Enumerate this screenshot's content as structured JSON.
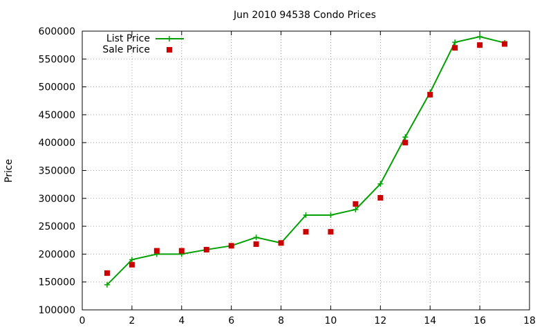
{
  "chart_data": {
    "type": "line",
    "title": "Jun 2010 94538 Condo Prices",
    "xlabel": "",
    "ylabel": "Price",
    "xlim": [
      0,
      18
    ],
    "ylim": [
      100000,
      600000
    ],
    "xticks": [
      "0",
      "2",
      "4",
      "6",
      "8",
      "10",
      "12",
      "14",
      "16",
      "18"
    ],
    "yticks": [
      "100000",
      "150000",
      "200000",
      "250000",
      "300000",
      "350000",
      "400000",
      "450000",
      "500000",
      "550000",
      "600000"
    ],
    "grid": true,
    "legend_position": "top-left",
    "series": [
      {
        "name": "List Price",
        "style": "line with plus markers",
        "color": "#00a000",
        "x": [
          1,
          2,
          3,
          4,
          5,
          6,
          7,
          8,
          9,
          10,
          11,
          12,
          13,
          14,
          15,
          16,
          17
        ],
        "y": [
          145000,
          190000,
          200000,
          200000,
          208000,
          215000,
          230000,
          220000,
          270000,
          270000,
          280000,
          326000,
          410000,
          490000,
          580000,
          590000,
          579000
        ]
      },
      {
        "name": "Sale Price",
        "style": "square markers",
        "color": "#cc0000",
        "x": [
          1,
          2,
          3,
          4,
          5,
          6,
          7,
          8,
          9,
          10,
          11,
          12,
          13,
          14,
          15,
          16,
          17
        ],
        "y": [
          166000,
          181000,
          206000,
          206000,
          208000,
          215000,
          218000,
          220000,
          240000,
          240000,
          290000,
          301000,
          400000,
          486000,
          570000,
          575000,
          577000
        ]
      }
    ]
  }
}
